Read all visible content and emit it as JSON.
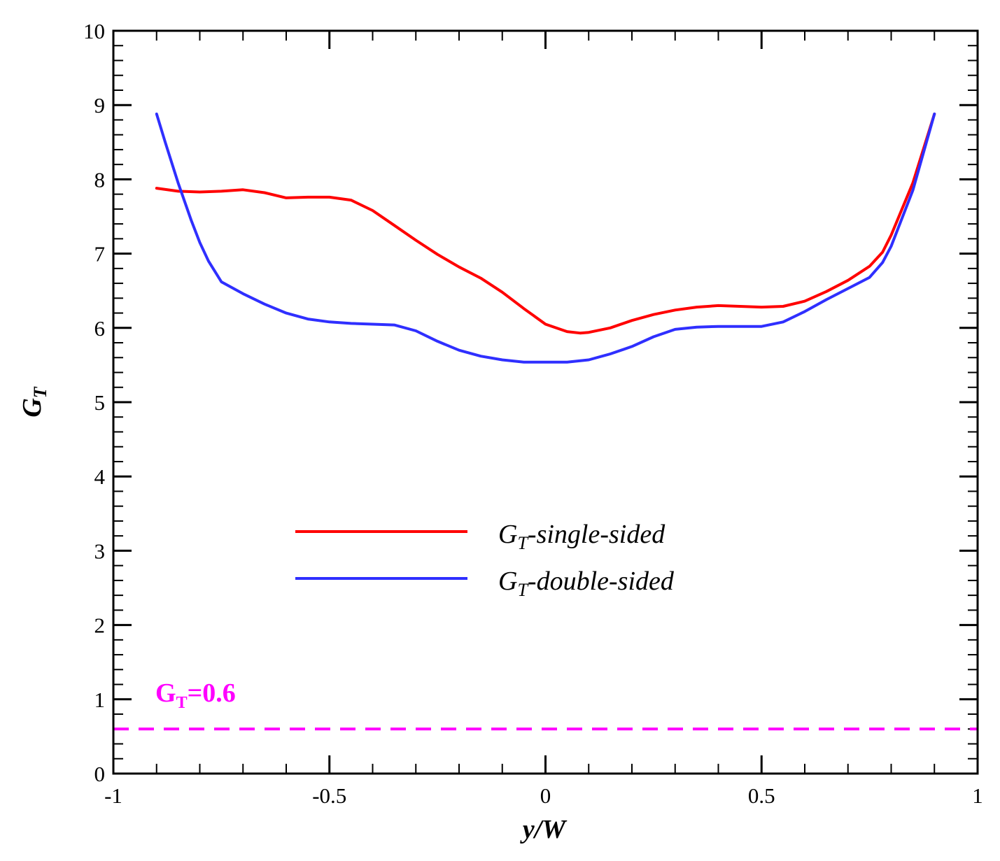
{
  "chart_data": {
    "type": "line",
    "title": "",
    "xlabel": {
      "base": "y/W"
    },
    "ylabel": {
      "base": "G",
      "sub": "T"
    },
    "xlim": [
      -1,
      1
    ],
    "ylim": [
      0,
      10
    ],
    "xticks": [
      -1,
      -0.5,
      0,
      0.5,
      1
    ],
    "xtick_labels": [
      "-1",
      "-0.5",
      "0",
      "0.5",
      "1"
    ],
    "yticks": [
      0,
      1,
      2,
      3,
      4,
      5,
      6,
      7,
      8,
      9,
      10
    ],
    "ytick_labels": [
      "0",
      "1",
      "2",
      "3",
      "4",
      "5",
      "6",
      "7",
      "8",
      "9",
      "10"
    ],
    "grid": false,
    "legend_position": "center",
    "series": [
      {
        "name": "G_T-single-sided",
        "label_base": "G",
        "label_sub": "T",
        "label_rest": "-single-sided",
        "color": "#ff0000",
        "x": [
          -0.9,
          -0.85,
          -0.8,
          -0.75,
          -0.7,
          -0.65,
          -0.6,
          -0.55,
          -0.5,
          -0.45,
          -0.4,
          -0.35,
          -0.3,
          -0.25,
          -0.2,
          -0.15,
          -0.1,
          -0.05,
          0.0,
          0.05,
          0.08,
          0.1,
          0.15,
          0.2,
          0.25,
          0.3,
          0.35,
          0.4,
          0.45,
          0.5,
          0.55,
          0.6,
          0.65,
          0.7,
          0.75,
          0.78,
          0.8,
          0.85,
          0.9
        ],
        "y": [
          7.88,
          7.84,
          7.83,
          7.84,
          7.86,
          7.82,
          7.75,
          7.76,
          7.76,
          7.72,
          7.58,
          7.38,
          7.18,
          6.99,
          6.82,
          6.67,
          6.48,
          6.26,
          6.05,
          5.95,
          5.93,
          5.94,
          6.0,
          6.1,
          6.18,
          6.24,
          6.28,
          6.3,
          6.29,
          6.28,
          6.29,
          6.36,
          6.49,
          6.64,
          6.83,
          7.02,
          7.25,
          7.95,
          8.88
        ]
      },
      {
        "name": "G_T-double-sided",
        "label_base": "G",
        "label_sub": "T",
        "label_rest": "-double-sided",
        "color": "#2f2fff",
        "x": [
          -0.9,
          -0.88,
          -0.85,
          -0.82,
          -0.8,
          -0.78,
          -0.75,
          -0.7,
          -0.65,
          -0.6,
          -0.55,
          -0.5,
          -0.45,
          -0.4,
          -0.35,
          -0.3,
          -0.25,
          -0.2,
          -0.15,
          -0.1,
          -0.05,
          0.0,
          0.05,
          0.1,
          0.15,
          0.2,
          0.25,
          0.3,
          0.35,
          0.4,
          0.45,
          0.5,
          0.55,
          0.6,
          0.65,
          0.7,
          0.75,
          0.78,
          0.8,
          0.85,
          0.9
        ],
        "y": [
          8.88,
          8.5,
          7.95,
          7.45,
          7.15,
          6.9,
          6.62,
          6.46,
          6.32,
          6.2,
          6.12,
          6.08,
          6.06,
          6.05,
          6.04,
          5.96,
          5.82,
          5.7,
          5.62,
          5.57,
          5.54,
          5.54,
          5.54,
          5.57,
          5.65,
          5.75,
          5.88,
          5.98,
          6.01,
          6.02,
          6.02,
          6.02,
          6.08,
          6.22,
          6.38,
          6.53,
          6.68,
          6.88,
          7.1,
          7.85,
          8.88
        ]
      }
    ],
    "reference_line": {
      "value": 0.6,
      "color": "#ff00ff",
      "label_base": "G",
      "label_sub": "T",
      "label_rest": "=0.6"
    }
  }
}
